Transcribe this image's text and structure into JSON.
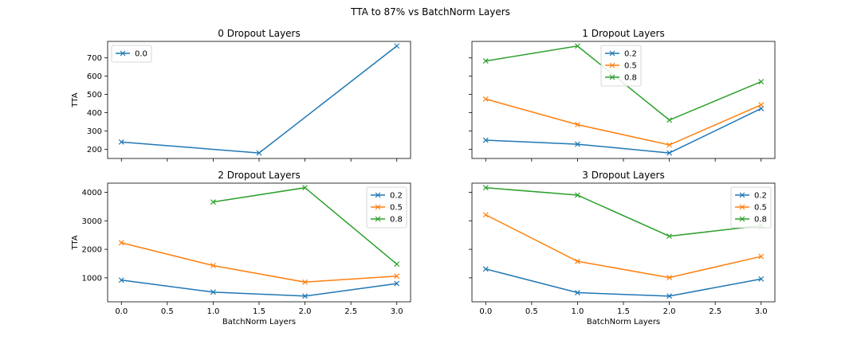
{
  "figure_title": "TTA to 87% vs BatchNorm Layers",
  "colors": {
    "0.0": "#1f77b4",
    "0.2": "#1f77b4",
    "0.5": "#ff7f0e",
    "0.8": "#2ca02c"
  },
  "chart_data": [
    {
      "type": "line",
      "title": "0 Dropout Layers",
      "xlabel": "",
      "ylabel": "TTA",
      "xlim": [
        -0.15,
        3.15
      ],
      "ylim": [
        150,
        790
      ],
      "yticks": [
        200,
        300,
        400,
        500,
        600,
        700
      ],
      "xticks": [
        0.0,
        0.5,
        1.0,
        1.5,
        2.0,
        2.5,
        3.0
      ],
      "show_xtick_labels": false,
      "show_ytick_labels": true,
      "legend_position": "upper-left",
      "series": [
        {
          "name": "0.0",
          "color": "#1f77b4",
          "x": [
            0,
            1.5,
            3
          ],
          "y": [
            240,
            180,
            765
          ]
        }
      ]
    },
    {
      "type": "line",
      "title": "1 Dropout Layers",
      "xlabel": "",
      "ylabel": "",
      "xlim": [
        -0.15,
        3.15
      ],
      "ylim": [
        150,
        790
      ],
      "yticks": [
        200,
        300,
        400,
        500,
        600,
        700
      ],
      "xticks": [
        0.0,
        0.5,
        1.0,
        1.5,
        2.0,
        2.5,
        3.0
      ],
      "show_xtick_labels": false,
      "show_ytick_labels": false,
      "legend_position": "upper-center",
      "series": [
        {
          "name": "0.2",
          "color": "#1f77b4",
          "x": [
            0,
            1,
            2,
            3
          ],
          "y": [
            250,
            228,
            180,
            423
          ]
        },
        {
          "name": "0.5",
          "color": "#ff7f0e",
          "x": [
            0,
            1,
            2,
            3
          ],
          "y": [
            475,
            335,
            224,
            443
          ]
        },
        {
          "name": "0.8",
          "color": "#2ca02c",
          "x": [
            0,
            1,
            2,
            3
          ],
          "y": [
            683,
            765,
            360,
            570
          ]
        }
      ]
    },
    {
      "type": "line",
      "title": "2 Dropout Layers",
      "xlabel": "BatchNorm Layers",
      "ylabel": "TTA",
      "xlim": [
        -0.15,
        3.15
      ],
      "ylim": [
        160,
        4320
      ],
      "yticks": [
        1000,
        2000,
        3000,
        4000
      ],
      "xticks": [
        0.0,
        0.5,
        1.0,
        1.5,
        2.0,
        2.5,
        3.0
      ],
      "show_xtick_labels": true,
      "show_ytick_labels": true,
      "legend_position": "upper-right",
      "series": [
        {
          "name": "0.2",
          "color": "#1f77b4",
          "x": [
            0,
            1,
            2,
            3
          ],
          "y": [
            920,
            500,
            360,
            800
          ]
        },
        {
          "name": "0.5",
          "color": "#ff7f0e",
          "x": [
            0,
            1,
            2,
            3
          ],
          "y": [
            2230,
            1430,
            850,
            1060
          ]
        },
        {
          "name": "0.8",
          "color": "#2ca02c",
          "x": [
            1,
            2,
            3
          ],
          "y": [
            3660,
            4160,
            1480
          ]
        }
      ]
    },
    {
      "type": "line",
      "title": "3 Dropout Layers",
      "xlabel": "BatchNorm Layers",
      "ylabel": "",
      "xlim": [
        -0.15,
        3.15
      ],
      "ylim": [
        160,
        4320
      ],
      "yticks": [
        1000,
        2000,
        3000,
        4000
      ],
      "xticks": [
        0.0,
        0.5,
        1.0,
        1.5,
        2.0,
        2.5,
        3.0
      ],
      "show_xtick_labels": true,
      "show_ytick_labels": false,
      "legend_position": "upper-right",
      "series": [
        {
          "name": "0.2",
          "color": "#1f77b4",
          "x": [
            0,
            1,
            2,
            3
          ],
          "y": [
            1310,
            480,
            360,
            960
          ]
        },
        {
          "name": "0.5",
          "color": "#ff7f0e",
          "x": [
            0,
            1,
            2,
            3
          ],
          "y": [
            3210,
            1580,
            1010,
            1750
          ]
        },
        {
          "name": "0.8",
          "color": "#2ca02c",
          "x": [
            0,
            1,
            2,
            3
          ],
          "y": [
            4160,
            3900,
            2460,
            2830
          ]
        }
      ]
    }
  ]
}
